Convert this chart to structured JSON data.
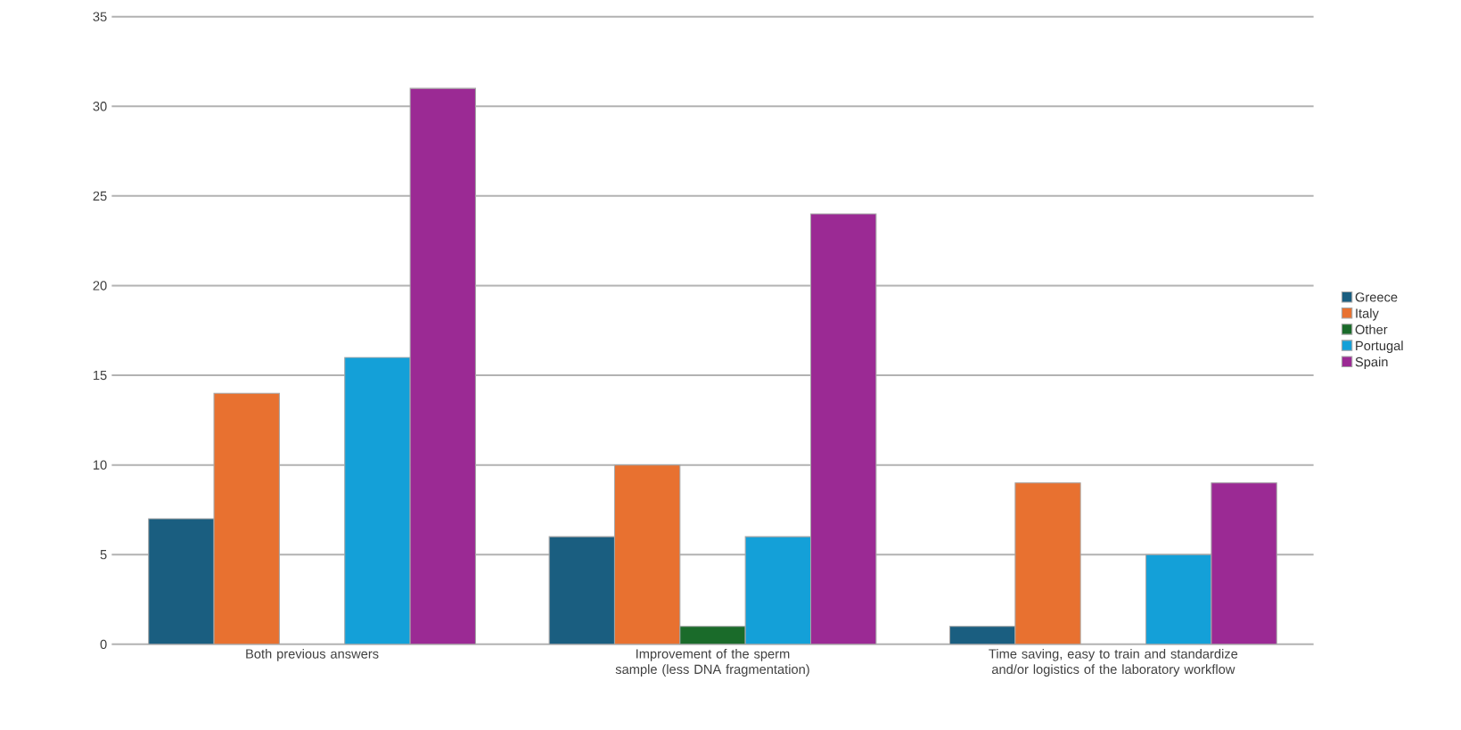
{
  "chart_data": {
    "type": "bar",
    "categories": [
      "Both previous answers",
      "Improvement of the sperm sample (less DNA fragmentation)",
      "Time saving, easy to train and standardize and/or logistics of the laboratory workflow"
    ],
    "series": [
      {
        "name": "Greece",
        "color": "#1a5e80",
        "values": [
          7,
          6,
          1
        ]
      },
      {
        "name": "Italy",
        "color": "#e87130",
        "values": [
          14,
          10,
          9
        ]
      },
      {
        "name": "Other",
        "color": "#1a6b2a",
        "values": [
          null,
          1,
          null
        ]
      },
      {
        "name": "Portugal",
        "color": "#14a0d8",
        "values": [
          16,
          6,
          5
        ]
      },
      {
        "name": "Spain",
        "color": "#9b2a94",
        "values": [
          31,
          24,
          9
        ]
      }
    ],
    "ylim": [
      0,
      35
    ],
    "yticks": [
      0,
      5,
      10,
      15,
      20,
      25,
      30,
      35
    ],
    "grid": "y",
    "legend": "right"
  }
}
